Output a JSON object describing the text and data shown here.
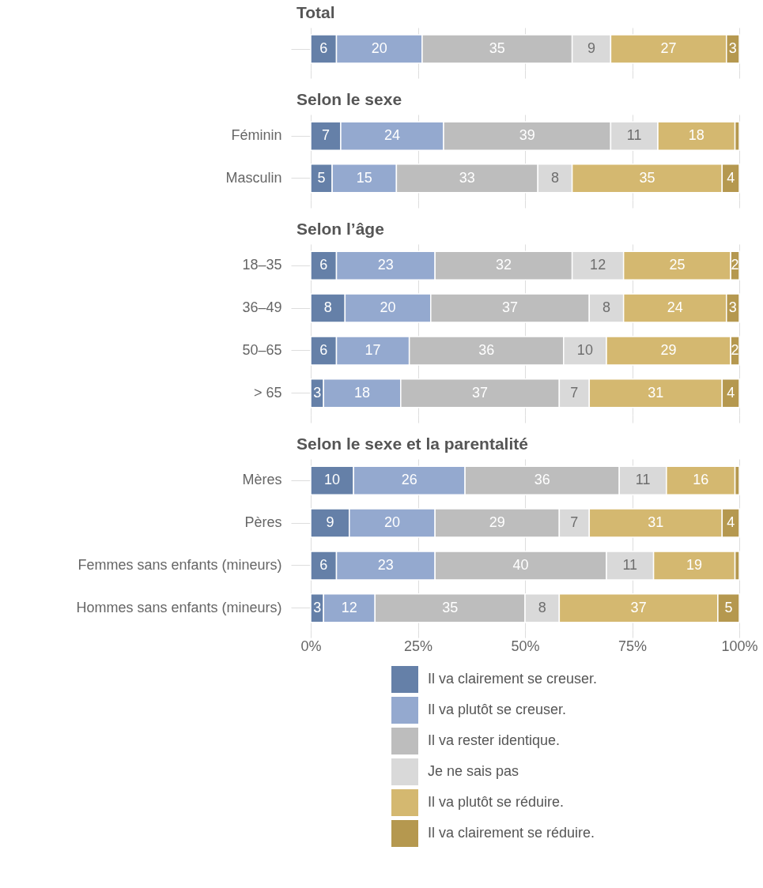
{
  "chart_data": [
    {
      "type": "bar",
      "title": "Total",
      "orientation": "horizontal",
      "stacked": true,
      "categories": [
        null
      ],
      "xlim": [
        0,
        100
      ],
      "xticks": [
        {
          "value": 0,
          "label": null
        },
        {
          "value": 25,
          "label": null
        },
        {
          "value": 50,
          "label": null
        },
        {
          "value": 75,
          "label": null
        },
        {
          "value": 100,
          "label": null
        }
      ],
      "grid": true,
      "tick_labels": "y",
      "series": [
        {
          "color": "#6580a8",
          "values": [
            6
          ],
          "value_labels": [
            "6"
          ]
        },
        {
          "color": "#94a9cf",
          "values": [
            20
          ],
          "value_labels": [
            "20"
          ]
        },
        {
          "color": "#bdbdbd",
          "values": [
            35
          ],
          "value_labels": [
            "35"
          ]
        },
        {
          "color": "#d9d9d9",
          "values": [
            9
          ],
          "value_labels": [
            "9"
          ]
        },
        {
          "color": "#d4b870",
          "values": [
            27
          ],
          "value_labels": [
            "27"
          ]
        },
        {
          "color": "#b5984f",
          "values": [
            3
          ],
          "value_labels": [
            "3"
          ]
        }
      ]
    },
    {
      "type": "bar",
      "title": "Selon le sexe",
      "orientation": "horizontal",
      "stacked": true,
      "categories": [
        "Féminin",
        "Masculin"
      ],
      "xlim": [
        0,
        100
      ],
      "xticks": [
        {
          "value": 0,
          "label": null
        },
        {
          "value": 25,
          "label": null
        },
        {
          "value": 50,
          "label": null
        },
        {
          "value": 75,
          "label": null
        },
        {
          "value": 100,
          "label": null
        }
      ],
      "grid": true,
      "tick_labels": "y",
      "series": [
        {
          "color": "#6580a8",
          "values": [
            7,
            5
          ],
          "value_labels": [
            "7",
            "5"
          ]
        },
        {
          "color": "#94a9cf",
          "values": [
            24,
            15
          ],
          "value_labels": [
            "24",
            "15"
          ]
        },
        {
          "color": "#bdbdbd",
          "values": [
            39,
            33
          ],
          "value_labels": [
            "39",
            "33"
          ]
        },
        {
          "color": "#d9d9d9",
          "values": [
            11,
            8
          ],
          "value_labels": [
            "11",
            "8"
          ]
        },
        {
          "color": "#d4b870",
          "values": [
            18,
            35
          ],
          "value_labels": [
            "18",
            "35"
          ]
        },
        {
          "color": "#b5984f",
          "values": [
            1,
            4
          ],
          "value_labels": [
            null,
            "4"
          ]
        }
      ]
    },
    {
      "type": "bar",
      "title": "Selon l’âge",
      "orientation": "horizontal",
      "stacked": true,
      "categories": [
        "18–35",
        "36–49",
        "50–65",
        "> 65"
      ],
      "xlim": [
        0,
        100
      ],
      "xticks": [
        {
          "value": 0,
          "label": null
        },
        {
          "value": 25,
          "label": null
        },
        {
          "value": 50,
          "label": null
        },
        {
          "value": 75,
          "label": null
        },
        {
          "value": 100,
          "label": null
        }
      ],
      "grid": true,
      "tick_labels": "y",
      "series": [
        {
          "color": "#6580a8",
          "values": [
            6,
            8,
            6,
            3
          ],
          "value_labels": [
            "6",
            "8",
            "6",
            "3"
          ]
        },
        {
          "color": "#94a9cf",
          "values": [
            23,
            20,
            17,
            18
          ],
          "value_labels": [
            "23",
            "20",
            "17",
            "18"
          ]
        },
        {
          "color": "#bdbdbd",
          "values": [
            32,
            37,
            36,
            37
          ],
          "value_labels": [
            "32",
            "37",
            "36",
            "37"
          ]
        },
        {
          "color": "#d9d9d9",
          "values": [
            12,
            8,
            10,
            7
          ],
          "value_labels": [
            "12",
            "8",
            "10",
            "7"
          ]
        },
        {
          "color": "#d4b870",
          "values": [
            25,
            24,
            29,
            31
          ],
          "value_labels": [
            "25",
            "24",
            "29",
            "31"
          ]
        },
        {
          "color": "#b5984f",
          "values": [
            2,
            3,
            2,
            4
          ],
          "value_labels": [
            "2",
            "3",
            "2",
            "4"
          ]
        }
      ]
    },
    {
      "type": "bar",
      "title": "Selon le sexe et la parentalité",
      "orientation": "horizontal",
      "stacked": true,
      "categories": [
        "Mères",
        "Pères",
        "Femmes sans enfants (mineurs)",
        "Hommes sans enfants (mineurs)"
      ],
      "xlim": [
        0,
        100
      ],
      "xticks": [
        {
          "value": 0,
          "label": "0%"
        },
        {
          "value": 25,
          "label": "25%"
        },
        {
          "value": 50,
          "label": "50%"
        },
        {
          "value": 75,
          "label": "75%"
        },
        {
          "value": 100,
          "label": "100%"
        }
      ],
      "grid": true,
      "legend": "bottom",
      "series": [
        {
          "name": "Il va clairement se creuser.",
          "color": "#6580a8",
          "values": [
            10,
            9,
            6,
            3
          ],
          "value_labels": [
            "10",
            "9",
            "6",
            "3"
          ]
        },
        {
          "name": "Il va plutôt se creuser.",
          "color": "#94a9cf",
          "values": [
            26,
            20,
            23,
            12
          ],
          "value_labels": [
            "26",
            "20",
            "23",
            "12"
          ]
        },
        {
          "name": "Il va rester identique.",
          "color": "#bdbdbd",
          "values": [
            36,
            29,
            40,
            35
          ],
          "value_labels": [
            "36",
            "29",
            "40",
            "35"
          ]
        },
        {
          "name": "Je ne sais pas",
          "color": "#d9d9d9",
          "values": [
            11,
            7,
            11,
            8
          ],
          "value_labels": [
            "11",
            "7",
            "11",
            "8"
          ]
        },
        {
          "name": "Il va plutôt se réduire.",
          "color": "#d4b870",
          "values": [
            16,
            31,
            19,
            37
          ],
          "value_labels": [
            "16",
            "31",
            "19",
            "37"
          ]
        },
        {
          "name": "Il va clairement se réduire.",
          "color": "#b5984f",
          "values": [
            1,
            4,
            1,
            5
          ],
          "value_labels": [
            null,
            "4",
            null,
            "5"
          ]
        }
      ]
    }
  ]
}
